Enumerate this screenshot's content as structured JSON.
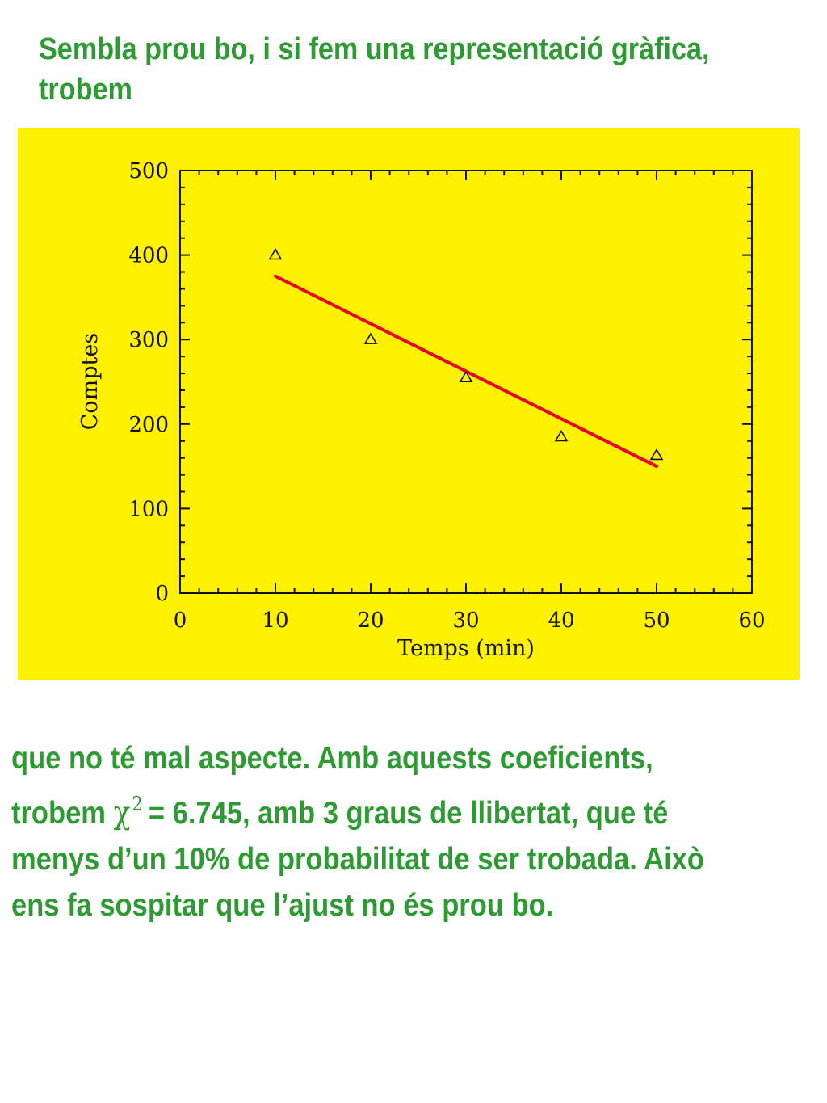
{
  "heading": {
    "line1": "Sembla prou bo, i si fem una representació gràfica,",
    "line2": "trobem"
  },
  "chart_data": {
    "type": "scatter",
    "title": "",
    "xlabel": "Temps (min)",
    "ylabel": "Comptes",
    "xlim": [
      0,
      60
    ],
    "ylim": [
      0,
      500
    ],
    "xticks": [
      0,
      10,
      20,
      30,
      40,
      50,
      60
    ],
    "yticks": [
      0,
      100,
      200,
      300,
      400,
      500
    ],
    "xtick_labels": [
      "0",
      "10",
      "20",
      "30",
      "40",
      "50",
      "60"
    ],
    "ytick_labels": [
      "0",
      "100",
      "200",
      "300",
      "400",
      "500"
    ],
    "grid": false,
    "legend": "none",
    "marker": "triangle-open",
    "points": [
      {
        "x": 10,
        "y": 400
      },
      {
        "x": 20,
        "y": 300
      },
      {
        "x": 30,
        "y": 255
      },
      {
        "x": 40,
        "y": 185
      },
      {
        "x": 50,
        "y": 163
      }
    ],
    "fit_line": {
      "x": [
        10,
        50
      ],
      "y": [
        375,
        150
      ],
      "color": "#e5002a"
    },
    "background_color": "#fff200",
    "axis_color": "#111111"
  },
  "paragraph": {
    "line1": "que no té mal aspecte. Amb aquests coeficients,",
    "line2_pre": "trobem",
    "chi_symbol": "χ",
    "chi_power": "2",
    "line2_post": "= 6.745, amb 3 graus de llibertat, que té",
    "line3": "menys d’un 10% de probabilitat de ser trobada. Això",
    "line4": "ens fa sospitar que l’ajust no és prou bo."
  },
  "colors": {
    "text_green": "#2e9a33",
    "panel_yellow": "#fff200",
    "fit_red": "#e5002a"
  }
}
